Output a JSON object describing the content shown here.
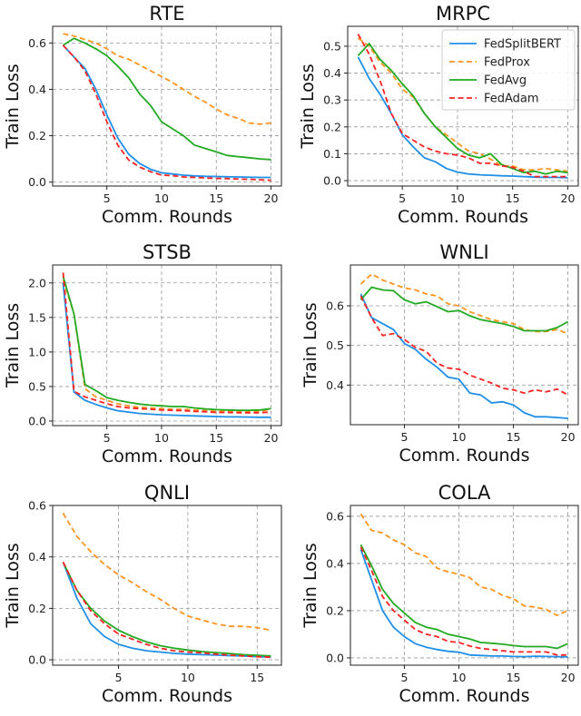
{
  "chart_data": [
    {
      "type": "line",
      "title": "RTE",
      "xlabel": "Comm. Rounds",
      "ylabel": "Train Loss",
      "xlim": [
        0.05,
        20.95
      ],
      "ylim": [
        -0.017,
        0.672
      ],
      "xticks": [
        5,
        10,
        15,
        20
      ],
      "yticks": [
        0.0,
        0.2,
        0.4,
        0.6
      ],
      "grid": true,
      "legend": false,
      "series": [
        {
          "name": "FedSplitBERT",
          "values": [
            0.59,
            0.54,
            0.49,
            0.4,
            0.29,
            0.19,
            0.12,
            0.08,
            0.055,
            0.04,
            0.035,
            0.03,
            0.027,
            0.025,
            0.024,
            0.023,
            0.022,
            0.021,
            0.02,
            0.02
          ]
        },
        {
          "name": "FedProx",
          "values": [
            0.64,
            0.63,
            0.615,
            0.6,
            0.575,
            0.545,
            0.53,
            0.505,
            0.48,
            0.455,
            0.43,
            0.4,
            0.37,
            0.345,
            0.315,
            0.29,
            0.275,
            0.255,
            0.25,
            0.255
          ]
        },
        {
          "name": "FedAvg",
          "values": [
            0.59,
            0.62,
            0.6,
            0.575,
            0.545,
            0.5,
            0.45,
            0.38,
            0.33,
            0.26,
            0.23,
            0.2,
            0.16,
            0.145,
            0.13,
            0.115,
            0.11,
            0.105,
            0.1,
            0.097
          ]
        },
        {
          "name": "FedAdam",
          "values": [
            0.59,
            0.54,
            0.48,
            0.38,
            0.26,
            0.16,
            0.095,
            0.065,
            0.045,
            0.03,
            0.028,
            0.022,
            0.02,
            0.018,
            0.016,
            0.015,
            0.013,
            0.012,
            0.01,
            0.008
          ]
        }
      ]
    },
    {
      "type": "line",
      "title": "MRPC",
      "xlabel": "Comm. Rounds",
      "ylabel": "Train Loss",
      "xlim": [
        0.05,
        20.95
      ],
      "ylim": [
        -0.02,
        0.574
      ],
      "xticks": [
        5,
        10,
        15,
        20
      ],
      "yticks": [
        0.0,
        0.1,
        0.2,
        0.3,
        0.4,
        0.5
      ],
      "grid": true,
      "legend": "top-right",
      "series": [
        {
          "name": "FedSplitBERT",
          "values": [
            0.46,
            0.38,
            0.32,
            0.25,
            0.17,
            0.125,
            0.085,
            0.07,
            0.045,
            0.032,
            0.025,
            0.022,
            0.02,
            0.018,
            0.017,
            0.015,
            0.013,
            0.012,
            0.012,
            0.011
          ]
        },
        {
          "name": "FedProx",
          "values": [
            0.53,
            0.5,
            0.44,
            0.4,
            0.34,
            0.31,
            0.25,
            0.2,
            0.17,
            0.14,
            0.11,
            0.1,
            0.08,
            0.055,
            0.055,
            0.04,
            0.04,
            0.045,
            0.04,
            0.035
          ]
        },
        {
          "name": "FedAvg",
          "values": [
            0.465,
            0.51,
            0.45,
            0.41,
            0.36,
            0.315,
            0.25,
            0.2,
            0.16,
            0.12,
            0.095,
            0.085,
            0.1,
            0.06,
            0.045,
            0.03,
            0.035,
            0.025,
            0.035,
            0.03
          ]
        },
        {
          "name": "FedAdam",
          "values": [
            0.545,
            0.47,
            0.37,
            0.25,
            0.175,
            0.15,
            0.125,
            0.11,
            0.1,
            0.095,
            0.085,
            0.065,
            0.065,
            0.055,
            0.05,
            0.035,
            0.015,
            0.015,
            0.015,
            0.015
          ]
        }
      ]
    },
    {
      "type": "line",
      "title": "STSB",
      "xlabel": "Comm. Rounds",
      "ylabel": "Train Loss",
      "xlim": [
        0.05,
        20.95
      ],
      "ylim": [
        -0.066,
        2.26
      ],
      "xticks": [
        5,
        10,
        15,
        20
      ],
      "yticks": [
        0.0,
        0.5,
        1.0,
        1.5,
        2.0
      ],
      "grid": true,
      "legend": false,
      "series": [
        {
          "name": "FedSplitBERT",
          "values": [
            2.0,
            0.42,
            0.3,
            0.24,
            0.19,
            0.15,
            0.13,
            0.11,
            0.1,
            0.09,
            0.085,
            0.08,
            0.075,
            0.07,
            0.065,
            0.06,
            0.06,
            0.058,
            0.055,
            0.055
          ]
        },
        {
          "name": "FedProx",
          "values": [
            2.05,
            1.55,
            0.47,
            0.35,
            0.3,
            0.25,
            0.22,
            0.2,
            0.19,
            0.18,
            0.17,
            0.17,
            0.16,
            0.15,
            0.14,
            0.14,
            0.14,
            0.14,
            0.14,
            0.17
          ]
        },
        {
          "name": "FedAvg",
          "values": [
            2.1,
            1.55,
            0.53,
            0.44,
            0.34,
            0.3,
            0.27,
            0.245,
            0.23,
            0.22,
            0.21,
            0.21,
            0.19,
            0.175,
            0.165,
            0.16,
            0.155,
            0.155,
            0.16,
            0.18
          ]
        },
        {
          "name": "FedAdam",
          "values": [
            2.15,
            0.43,
            0.35,
            0.3,
            0.25,
            0.21,
            0.19,
            0.18,
            0.17,
            0.16,
            0.155,
            0.15,
            0.14,
            0.135,
            0.125,
            0.125,
            0.12,
            0.12,
            0.12,
            0.13
          ]
        }
      ]
    },
    {
      "type": "line",
      "title": "WNLI",
      "xlabel": "Comm. Rounds",
      "ylabel": "Train Loss",
      "xlim": [
        0.05,
        20.95
      ],
      "ylim": [
        0.3,
        0.703
      ],
      "xticks": [
        5,
        10,
        15,
        20
      ],
      "yticks": [
        0.4,
        0.5,
        0.6
      ],
      "grid": true,
      "legend": false,
      "series": [
        {
          "name": "FedSplitBERT",
          "values": [
            0.63,
            0.57,
            0.555,
            0.54,
            0.505,
            0.49,
            0.465,
            0.445,
            0.42,
            0.415,
            0.38,
            0.375,
            0.355,
            0.358,
            0.35,
            0.33,
            0.32,
            0.32,
            0.318,
            0.316
          ]
        },
        {
          "name": "FedProx",
          "values": [
            0.655,
            0.68,
            0.665,
            0.655,
            0.645,
            0.64,
            0.63,
            0.625,
            0.605,
            0.6,
            0.585,
            0.575,
            0.565,
            0.56,
            0.555,
            0.54,
            0.535,
            0.535,
            0.54,
            0.53
          ]
        },
        {
          "name": "FedAvg",
          "values": [
            0.615,
            0.647,
            0.64,
            0.638,
            0.615,
            0.605,
            0.61,
            0.598,
            0.585,
            0.588,
            0.575,
            0.565,
            0.56,
            0.555,
            0.548,
            0.537,
            0.537,
            0.537,
            0.545,
            0.56
          ]
        },
        {
          "name": "FedAdam",
          "values": [
            0.625,
            0.57,
            0.525,
            0.53,
            0.515,
            0.495,
            0.485,
            0.455,
            0.443,
            0.44,
            0.425,
            0.415,
            0.405,
            0.392,
            0.388,
            0.38,
            0.388,
            0.383,
            0.39,
            0.375
          ]
        }
      ]
    },
    {
      "type": "line",
      "title": "QNLI",
      "xlabel": "Comm. Rounds",
      "ylabel": "Train Loss",
      "xlim": [
        0.25,
        16.75
      ],
      "ylim": [
        -0.021,
        0.6
      ],
      "xticks": [
        5,
        10,
        15
      ],
      "yticks": [
        0.0,
        0.2,
        0.4,
        0.6
      ],
      "grid": true,
      "legend": false,
      "series": [
        {
          "name": "FedSplitBERT",
          "values": [
            0.38,
            0.24,
            0.14,
            0.09,
            0.06,
            0.045,
            0.035,
            0.03,
            0.025,
            0.022,
            0.02,
            0.018,
            0.016,
            0.015,
            0.012,
            0.01
          ]
        },
        {
          "name": "FedProx",
          "values": [
            0.57,
            0.48,
            0.42,
            0.37,
            0.33,
            0.3,
            0.265,
            0.235,
            0.2,
            0.17,
            0.155,
            0.14,
            0.13,
            0.13,
            0.125,
            0.115
          ]
        },
        {
          "name": "FedAvg",
          "values": [
            0.38,
            0.27,
            0.2,
            0.15,
            0.115,
            0.09,
            0.07,
            0.055,
            0.045,
            0.038,
            0.032,
            0.028,
            0.024,
            0.02,
            0.017,
            0.015
          ]
        },
        {
          "name": "FedAdam",
          "values": [
            0.38,
            0.27,
            0.19,
            0.14,
            0.1,
            0.08,
            0.06,
            0.045,
            0.035,
            0.03,
            0.027,
            0.022,
            0.018,
            0.015,
            0.012,
            0.01
          ]
        }
      ]
    },
    {
      "type": "line",
      "title": "COLA",
      "xlabel": "Comm. Rounds",
      "ylabel": "Train Loss",
      "xlim": [
        0.05,
        20.95
      ],
      "ylim": [
        -0.031,
        0.646
      ],
      "xticks": [
        5,
        10,
        15,
        20
      ],
      "yticks": [
        0.0,
        0.2,
        0.4,
        0.6
      ],
      "grid": true,
      "legend": false,
      "series": [
        {
          "name": "FedSplitBERT",
          "values": [
            0.46,
            0.33,
            0.2,
            0.13,
            0.09,
            0.06,
            0.045,
            0.035,
            0.028,
            0.024,
            0.012,
            0.01,
            0.008,
            0.008,
            0.006,
            0.005,
            0.007,
            0.006,
            0.005,
            0.004
          ]
        },
        {
          "name": "FedProx",
          "values": [
            0.61,
            0.54,
            0.53,
            0.5,
            0.48,
            0.445,
            0.43,
            0.38,
            0.365,
            0.355,
            0.34,
            0.3,
            0.29,
            0.265,
            0.25,
            0.22,
            0.215,
            0.205,
            0.18,
            0.2
          ]
        },
        {
          "name": "FedAvg",
          "values": [
            0.48,
            0.39,
            0.29,
            0.23,
            0.19,
            0.15,
            0.13,
            0.12,
            0.1,
            0.09,
            0.08,
            0.065,
            0.062,
            0.058,
            0.052,
            0.048,
            0.048,
            0.048,
            0.04,
            0.06
          ]
        },
        {
          "name": "FedAdam",
          "values": [
            0.47,
            0.37,
            0.26,
            0.2,
            0.16,
            0.12,
            0.1,
            0.09,
            0.07,
            0.065,
            0.05,
            0.04,
            0.035,
            0.03,
            0.025,
            0.025,
            0.025,
            0.025,
            0.012,
            0.012
          ]
        }
      ]
    }
  ],
  "series_styles": {
    "FedSplitBERT": {
      "color": "#1f8fe8",
      "dash": "solid"
    },
    "FedProx": {
      "color": "#ff9420",
      "dash": "dashed"
    },
    "FedAvg": {
      "color": "#22aa22",
      "dash": "solid"
    },
    "FedAdam": {
      "color": "#ff2222",
      "dash": "dashed"
    }
  }
}
